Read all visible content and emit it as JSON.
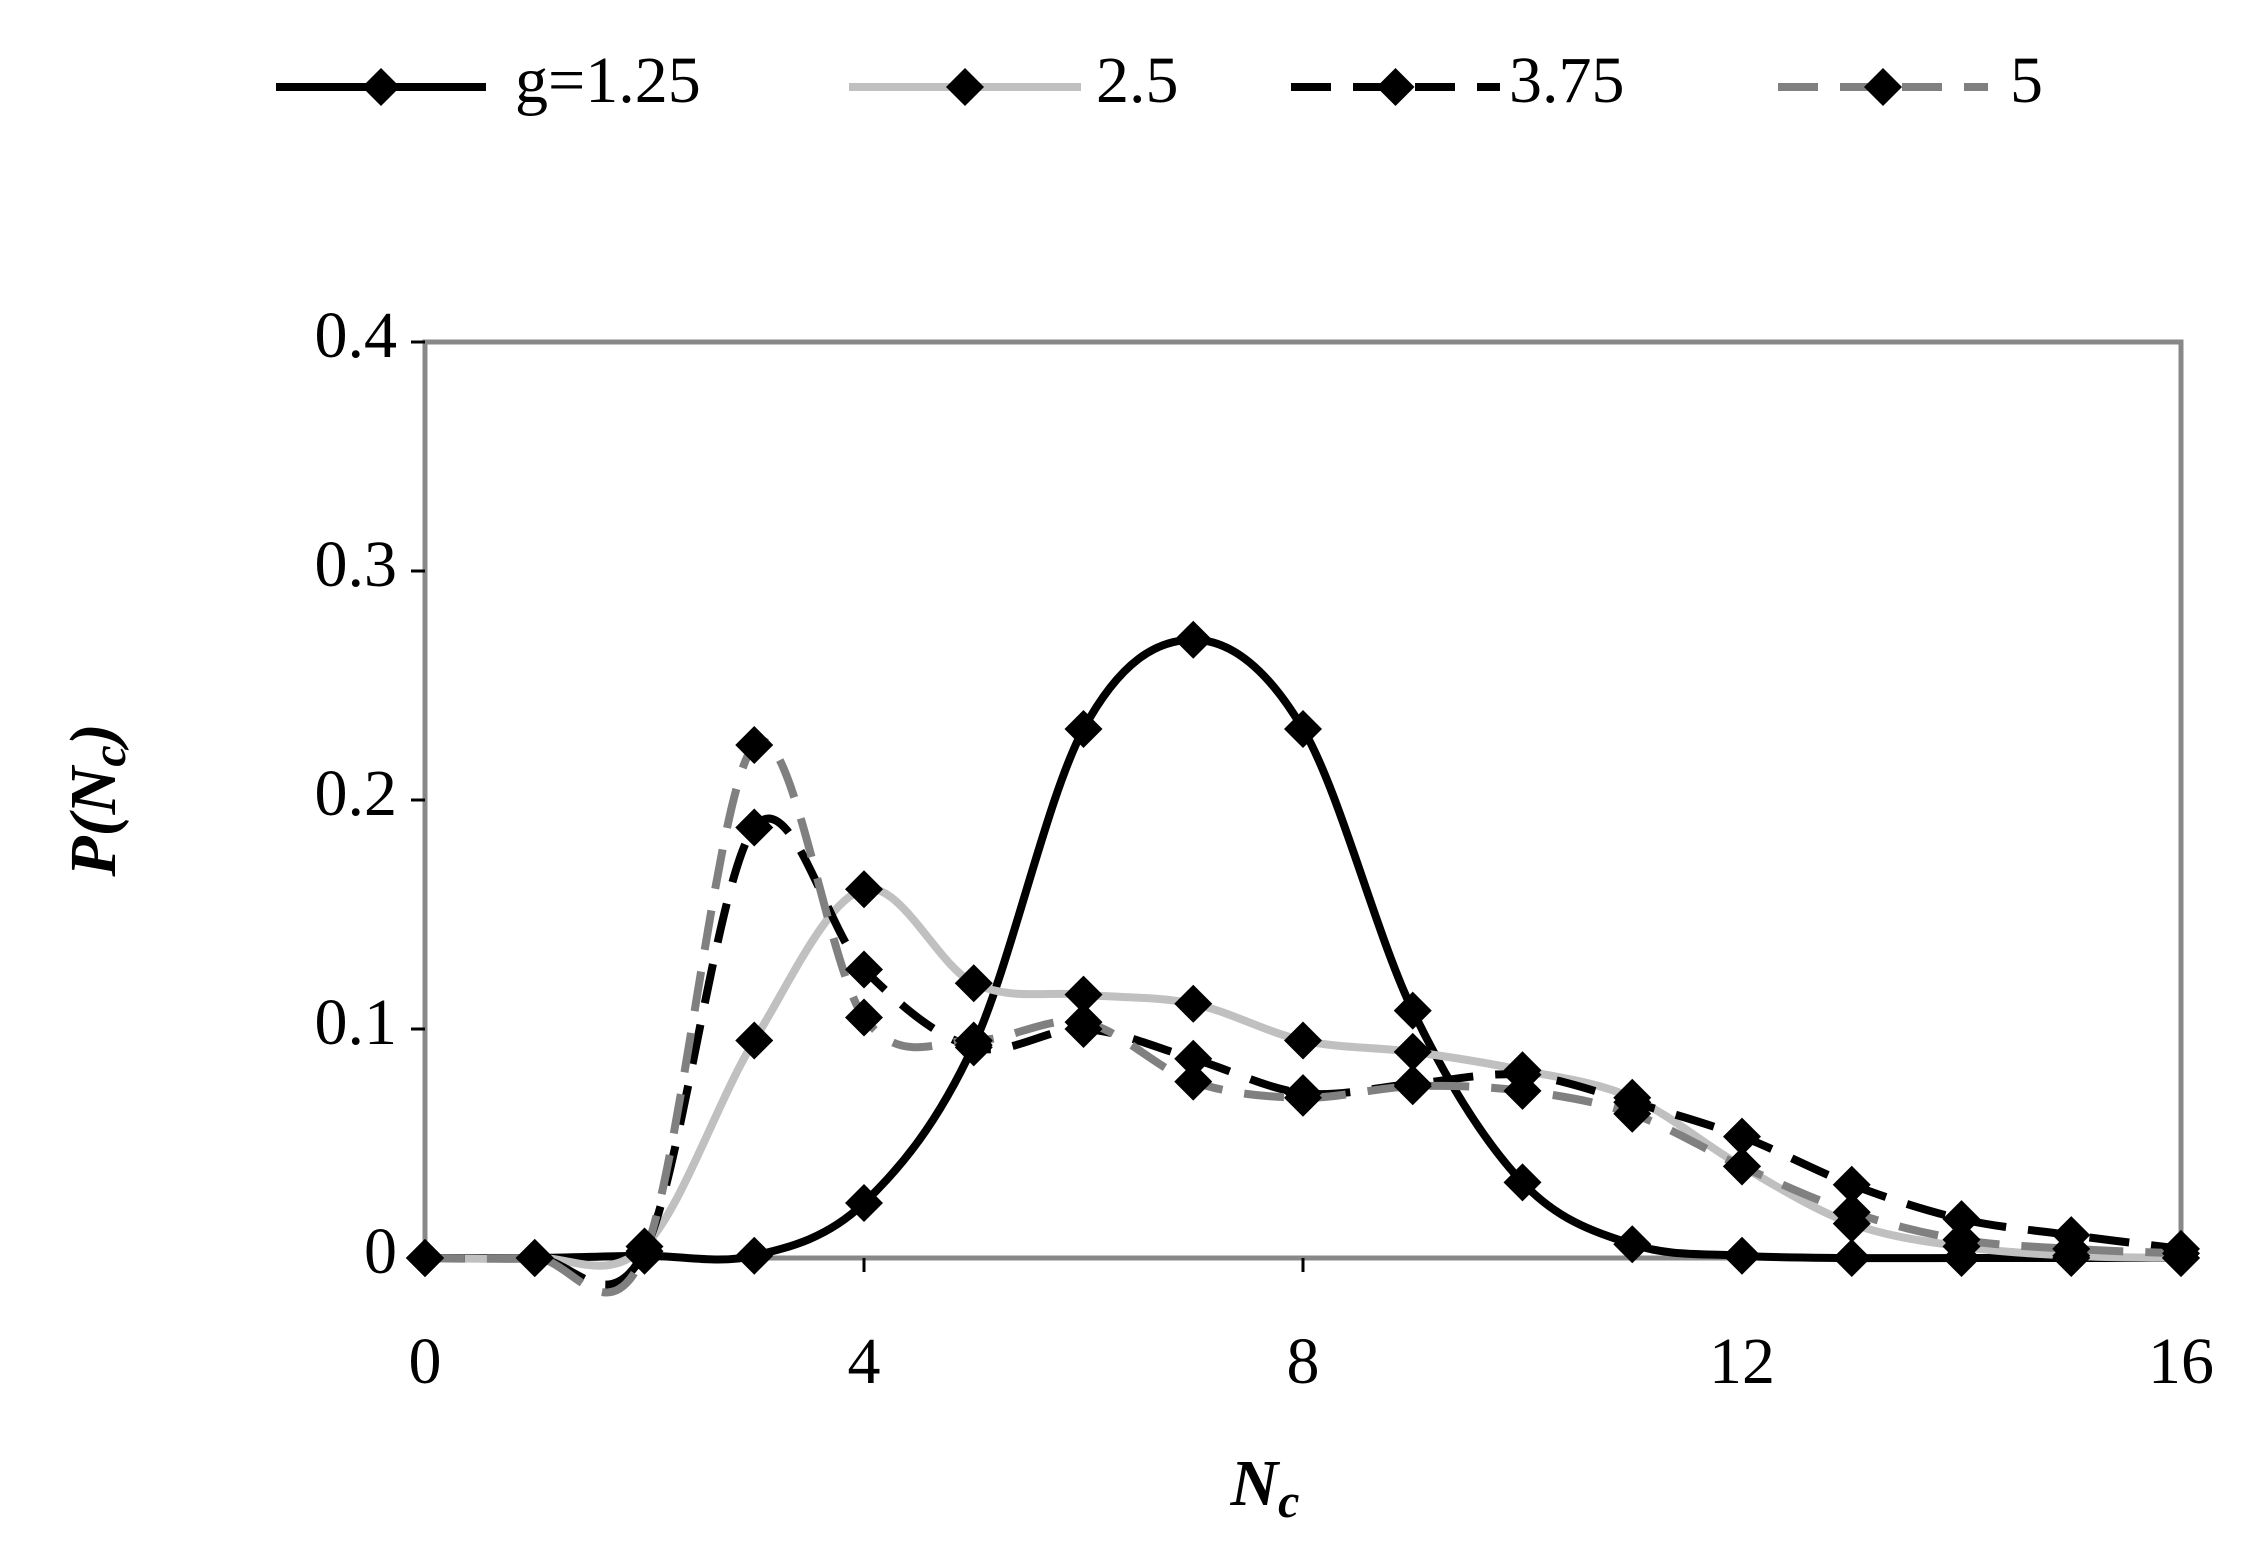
{
  "chart_data": {
    "type": "line",
    "x_label": {
      "main": "N",
      "sub": "c"
    },
    "y_label": {
      "main": "P(N",
      "sub": "c",
      "end": ")"
    },
    "x": [
      0,
      1,
      2,
      3,
      4,
      5,
      6,
      7,
      8,
      9,
      10,
      11,
      12,
      13,
      14,
      15,
      16
    ],
    "series": [
      {
        "name": "g=1.25",
        "color": "#000000",
        "dash": false,
        "values": [
          0,
          0,
          0.001,
          0.001,
          0.024,
          0.093,
          0.231,
          0.27,
          0.231,
          0.108,
          0.033,
          0.006,
          0.001,
          0,
          0,
          0,
          0
        ]
      },
      {
        "name": "2.5",
        "color": "#c0c0c0",
        "dash": false,
        "values": [
          0,
          0,
          0.005,
          0.095,
          0.161,
          0.12,
          0.115,
          0.111,
          0.095,
          0.09,
          0.082,
          0.07,
          0.04,
          0.015,
          0.005,
          0.001,
          0
        ]
      },
      {
        "name": "3.75",
        "color": "#000000",
        "dash": true,
        "values": [
          0,
          0,
          0.003,
          0.188,
          0.126,
          0.092,
          0.1,
          0.087,
          0.072,
          0.076,
          0.08,
          0.068,
          0.053,
          0.032,
          0.017,
          0.01,
          0.004
        ]
      },
      {
        "name": "5",
        "color": "#808080",
        "dash": true,
        "values": [
          0,
          0,
          0.002,
          0.224,
          0.105,
          0.095,
          0.103,
          0.077,
          0.07,
          0.075,
          0.073,
          0.063,
          0.04,
          0.02,
          0.008,
          0.004,
          0.002
        ]
      }
    ],
    "xlim": [
      0,
      16
    ],
    "xticks": [
      0,
      4,
      8,
      12,
      16
    ],
    "ylim": [
      0,
      0.4
    ],
    "yticks": [
      0,
      0.1,
      0.2,
      0.3,
      0.4
    ],
    "smooth": true,
    "grid": false,
    "legend": "top"
  }
}
